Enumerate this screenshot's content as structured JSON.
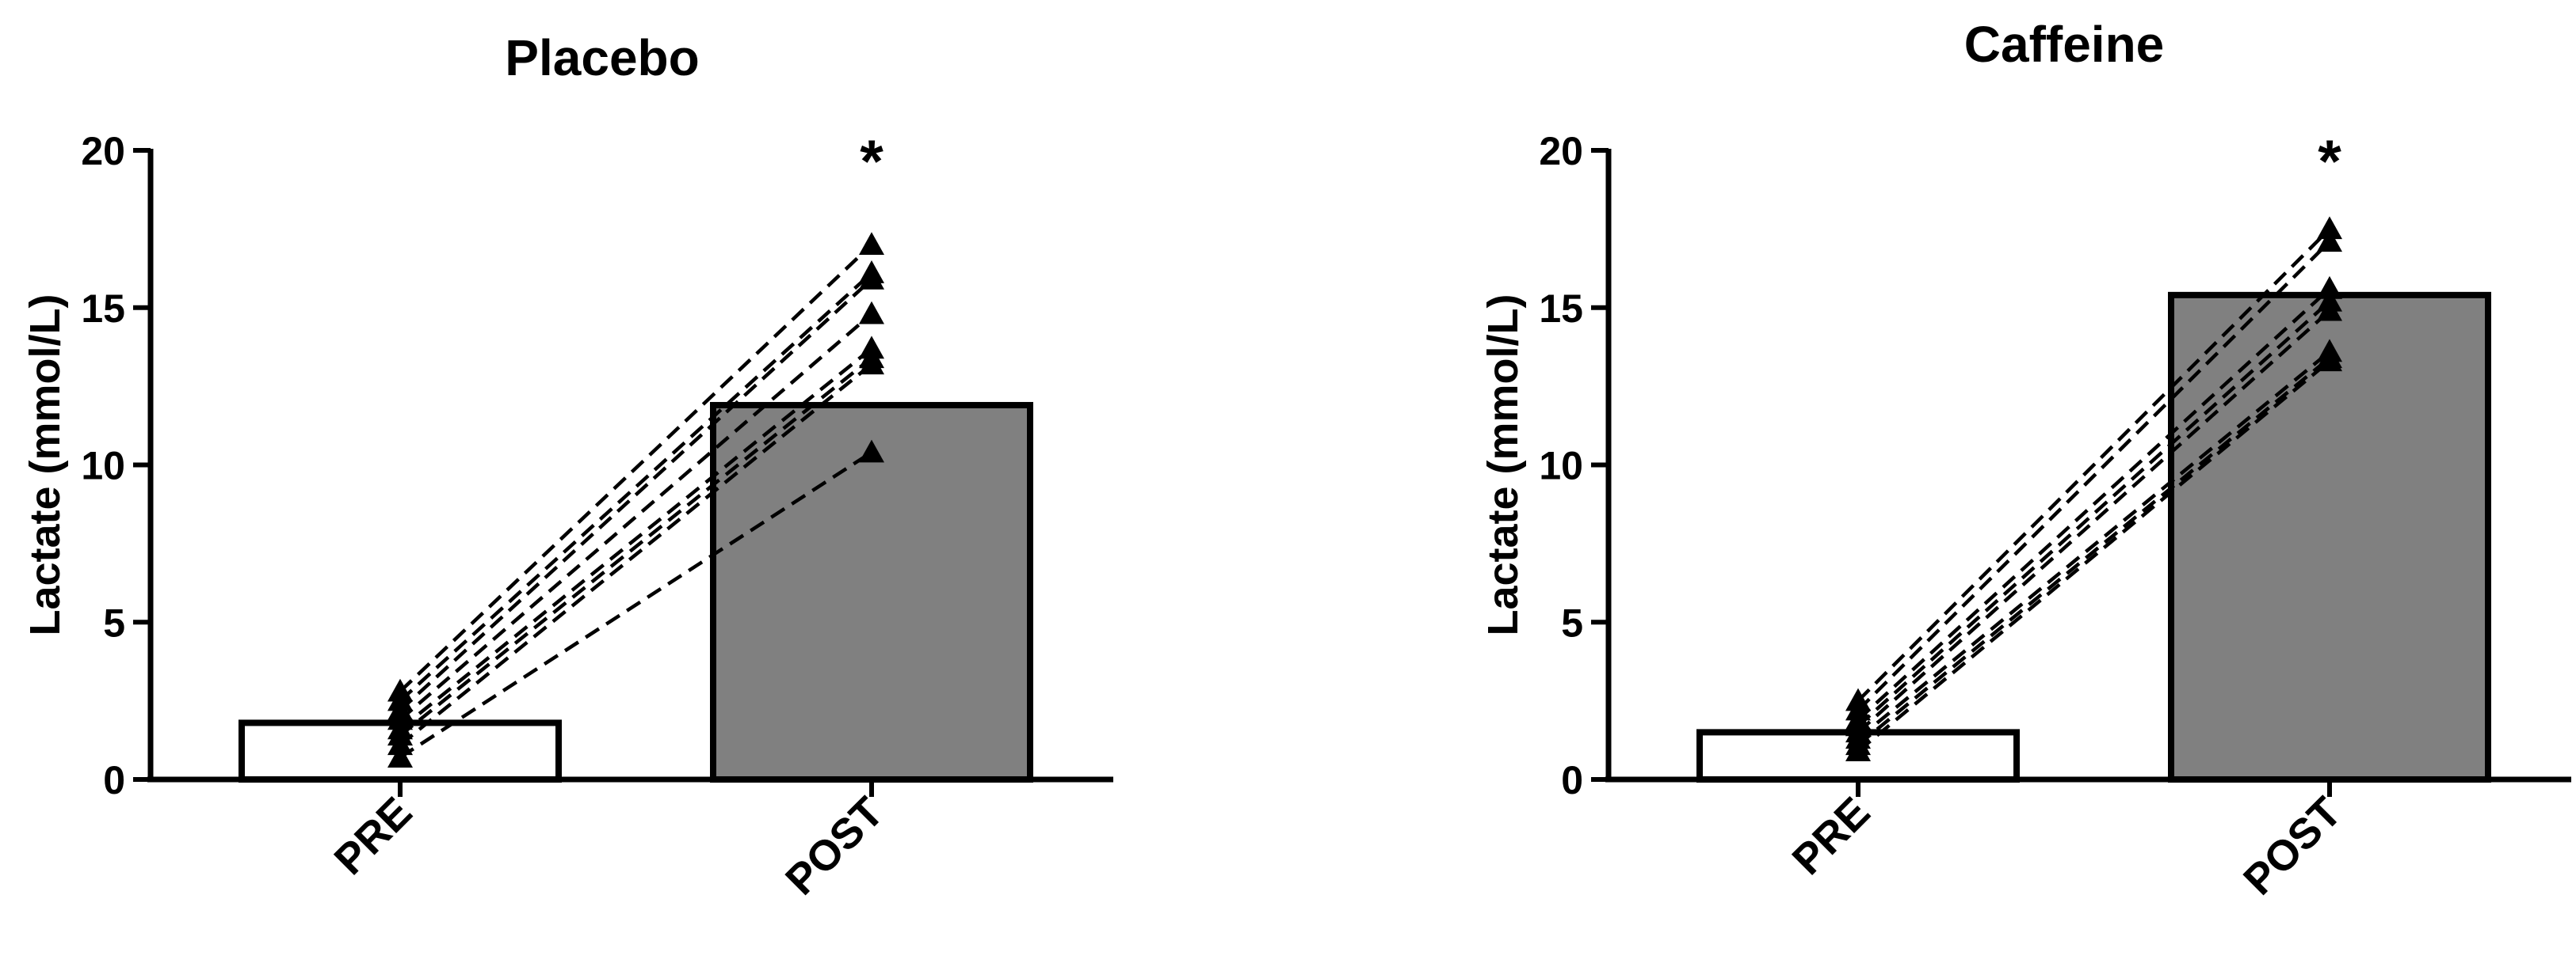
{
  "chart_data": [
    {
      "type": "bar",
      "title": "Placebo",
      "ylabel": "Lactate (mmol/L)",
      "xlabel": "",
      "ylim": [
        0,
        20
      ],
      "yticks": [
        0,
        5,
        10,
        15,
        20
      ],
      "categories": [
        "PRE",
        "POST"
      ],
      "values": [
        1.8,
        11.9
      ],
      "bar_colors": [
        "#ffffff",
        "#808080"
      ],
      "significance": {
        "category": "POST",
        "label": "*"
      },
      "individual_lines": {
        "marker": "triangle",
        "line_style": "dashed",
        "pairs": [
          [
            2.8,
            17.0
          ],
          [
            2.5,
            16.1
          ],
          [
            2.2,
            15.9
          ],
          [
            1.9,
            14.8
          ],
          [
            1.6,
            13.7
          ],
          [
            1.4,
            13.4
          ],
          [
            1.1,
            13.2
          ],
          [
            0.7,
            10.4
          ]
        ]
      }
    },
    {
      "type": "bar",
      "title": "Caffeine",
      "ylabel": "Lactate (mmol/L)",
      "xlabel": "",
      "ylim": [
        0,
        20
      ],
      "yticks": [
        0,
        5,
        10,
        15,
        20
      ],
      "categories": [
        "PRE",
        "POST"
      ],
      "values": [
        1.5,
        15.4
      ],
      "bar_colors": [
        "#ffffff",
        "#808080"
      ],
      "significance": {
        "category": "POST",
        "label": "*"
      },
      "individual_lines": {
        "marker": "triangle",
        "line_style": "dashed",
        "pairs": [
          [
            2.5,
            17.5
          ],
          [
            2.2,
            17.1
          ],
          [
            1.9,
            15.6
          ],
          [
            1.7,
            15.2
          ],
          [
            1.5,
            14.9
          ],
          [
            1.3,
            13.6
          ],
          [
            1.1,
            13.4
          ],
          [
            0.9,
            13.3
          ]
        ]
      }
    }
  ]
}
